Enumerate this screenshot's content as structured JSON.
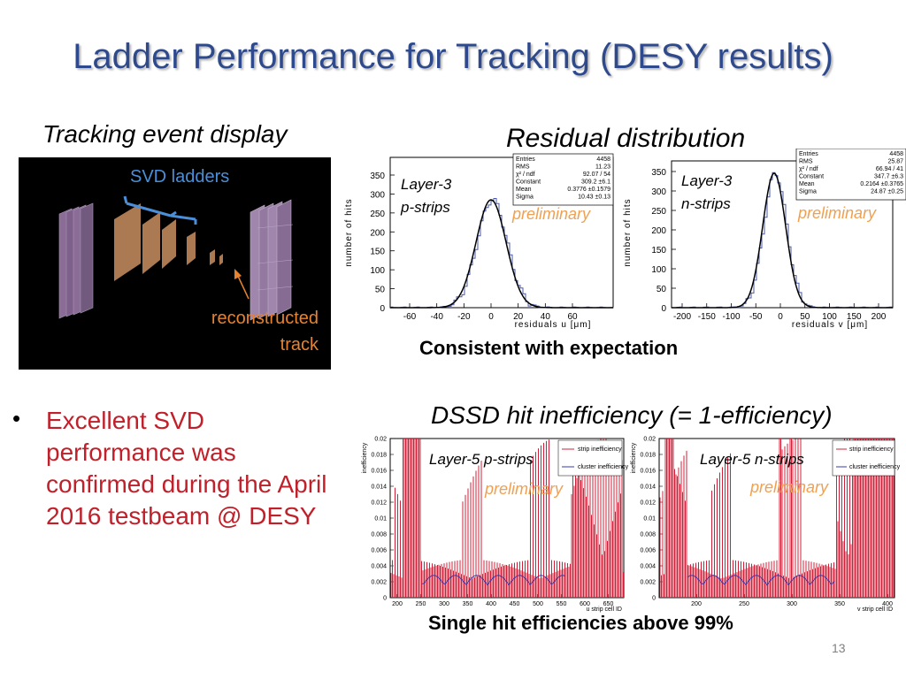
{
  "slide": {
    "title": "Ladder Performance for Tracking (DESY results)",
    "page_number": "13"
  },
  "event_display": {
    "heading": "Tracking event display",
    "svd_label": "SVD ladders",
    "track_label_line1": "reconstructed",
    "track_label_line2": "track",
    "colors": {
      "background": "#000000",
      "svd_label": "#4a8fd8",
      "track_label": "#e8822e",
      "ladders": "#d89a6a",
      "telescope": "#c8a8d8"
    }
  },
  "residuals": {
    "heading": "Residual distribution",
    "caption": "Consistent with expectation",
    "ylabel": "number of hits",
    "preliminary": "preliminary",
    "colors": {
      "histogram": "#4a5aa8",
      "fit": "#000000",
      "preliminary": "#f0a050"
    },
    "plots": [
      {
        "label_line1": "Layer-3",
        "label_line2": "p-strips",
        "xlabel": "residuals u [μm]",
        "x_ticks": [
          "-60",
          "-40",
          "-20",
          "0",
          "20",
          "40",
          "60"
        ],
        "y_ticks": [
          "0",
          "50",
          "100",
          "150",
          "200",
          "250",
          "300",
          "350"
        ],
        "stats": [
          [
            "Entries",
            "4458"
          ],
          [
            "RMS",
            "11.23"
          ],
          [
            "χ² / ndf",
            "92.07 / 54"
          ],
          [
            "Constant",
            "309.2 ±6.1"
          ],
          [
            "Mean",
            "0.3776 ±0.1579"
          ],
          [
            "Sigma",
            "10.43 ±0.13"
          ]
        ]
      },
      {
        "label_line1": "Layer-3",
        "label_line2": "n-strips",
        "xlabel": "residuals v [μm]",
        "x_ticks": [
          "-200",
          "-150",
          "-100",
          "-50",
          "0",
          "50",
          "100",
          "150",
          "200"
        ],
        "y_ticks": [
          "0",
          "50",
          "100",
          "150",
          "200",
          "250",
          "300",
          "350"
        ],
        "stats": [
          [
            "Entries",
            "4458"
          ],
          [
            "RMS",
            "25.87"
          ],
          [
            "χ² / ndf",
            "66.94 / 41"
          ],
          [
            "Constant",
            "347.7 ±6.3"
          ],
          [
            "Mean",
            "0.2164 ±0.3765"
          ],
          [
            "Sigma",
            "24.87 ±0.25"
          ]
        ]
      }
    ]
  },
  "inefficiency": {
    "heading": "DSSD hit inefficiency (= 1-efficiency)",
    "caption": "Single hit efficiencies above 99%",
    "ylabel": "inefficiency",
    "preliminary": "preliminary",
    "legend": [
      "strip inefficiency",
      "cluster inefficiency"
    ],
    "colors": {
      "strip": "#d0203a",
      "cluster": "#3a3ab0"
    },
    "y_ticks": [
      "0",
      "0.002",
      "0.004",
      "0.006",
      "0.008",
      "0.01",
      "0.012",
      "0.014",
      "0.016",
      "0.018",
      "0.02"
    ],
    "plots": [
      {
        "label": "Layer-5 p-strips",
        "xlabel": "u strip cell ID",
        "x_ticks": [
          "200",
          "250",
          "300",
          "350",
          "400",
          "450",
          "500",
          "550",
          "600",
          "650"
        ]
      },
      {
        "label": "Layer-5 n-strips",
        "xlabel": "v strip cell ID",
        "x_ticks": [
          "200",
          "250",
          "300",
          "350",
          "400"
        ]
      }
    ]
  },
  "bullet": {
    "symbol": "•",
    "text": "Excellent SVD performance was confirmed during the April 2016 testbeam @ DESY",
    "color": "#c0202a"
  }
}
